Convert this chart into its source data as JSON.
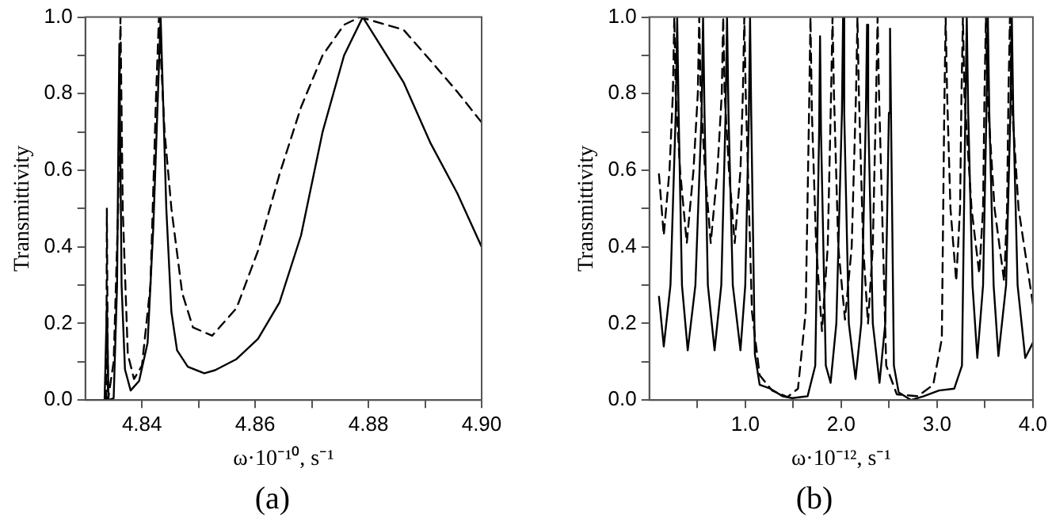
{
  "chart_data": [
    {
      "type": "line",
      "xlabel": "ω·10⁻¹⁰, s⁻¹",
      "ylabel": "Transmittivity",
      "annotations": [
        "(a)"
      ],
      "xlim": [
        4.83,
        4.9
      ],
      "ylim": [
        0,
        1
      ],
      "xticks": [
        {
          "value": 4.84,
          "label": "4.84"
        },
        {
          "value": 4.85,
          "label": null
        },
        {
          "value": 4.86,
          "label": "4.86"
        },
        {
          "value": 4.87,
          "label": null
        },
        {
          "value": 4.88,
          "label": "4.88"
        },
        {
          "value": 4.89,
          "label": null
        },
        {
          "value": 4.9,
          "label": "4.90"
        }
      ],
      "yticks": [
        {
          "value": 0,
          "label": "0.0"
        },
        {
          "value": 0.1,
          "label": null
        },
        {
          "value": 0.2,
          "label": "0.2"
        },
        {
          "value": 0.3,
          "label": null
        },
        {
          "value": 0.4,
          "label": "0.4"
        },
        {
          "value": 0.5,
          "label": null
        },
        {
          "value": 0.6,
          "label": "0.6"
        },
        {
          "value": 0.7,
          "label": null
        },
        {
          "value": 0.8,
          "label": "0.8"
        },
        {
          "value": 0.9,
          "label": null
        },
        {
          "value": 1,
          "label": "1.0"
        }
      ],
      "series": [
        {
          "color": "#000000",
          "line_style": "solid",
          "x": [
            4.83,
            4.8334,
            4.8338,
            4.8341,
            4.835,
            4.8356,
            4.836,
            4.8364,
            4.837,
            4.838,
            4.8395,
            4.841,
            4.842,
            4.8433,
            4.8443,
            4.8452,
            4.8462,
            4.8481,
            4.851,
            4.8529,
            4.8567,
            4.8605,
            4.8643,
            4.8681,
            4.8719,
            4.8757,
            4.879,
            4.8862,
            4.891,
            4.8957,
            4.9
          ],
          "values": [
            0,
            0,
            0.25,
            0,
            0.005,
            0.3,
            0.93,
            0.3,
            0.08,
            0.025,
            0.05,
            0.15,
            0.45,
            1.0,
            0.5,
            0.23,
            0.13,
            0.087,
            0.07,
            0.078,
            0.107,
            0.16,
            0.255,
            0.43,
            0.7,
            0.9,
            1.0,
            0.83,
            0.67,
            0.54,
            0.4
          ]
        },
        {
          "color": "#000000",
          "line_style": "dashed",
          "x": [
            4.8337,
            4.8338,
            4.834,
            4.835,
            4.8358,
            4.8362,
            4.8366,
            4.8375,
            4.8386,
            4.84,
            4.8415,
            4.8425,
            4.843,
            4.844,
            4.8452,
            4.8471,
            4.849,
            4.8524,
            4.8567,
            4.8605,
            4.8643,
            4.8681,
            4.8719,
            4.8757,
            4.8785,
            4.8862,
            4.891,
            4.8957,
            4.9
          ],
          "values": [
            0,
            0.5,
            0,
            0.1,
            0.5,
            1.0,
            0.5,
            0.12,
            0.055,
            0.09,
            0.3,
            0.8,
            1.0,
            0.7,
            0.5,
            0.28,
            0.19,
            0.168,
            0.24,
            0.39,
            0.59,
            0.765,
            0.9,
            0.98,
            1.0,
            0.967,
            0.886,
            0.805,
            0.725
          ]
        }
      ]
    },
    {
      "type": "line",
      "xlabel": "ω·10⁻¹², s⁻¹",
      "ylabel": "Transmittivity",
      "annotations": [
        "(b)"
      ],
      "xlim": [
        0,
        4
      ],
      "ylim": [
        0,
        1
      ],
      "xticks": [
        {
          "value": 0.5,
          "label": null
        },
        {
          "value": 1,
          "label": "1.0"
        },
        {
          "value": 1.5,
          "label": null
        },
        {
          "value": 2,
          "label": "2.0"
        },
        {
          "value": 2.5,
          "label": null
        },
        {
          "value": 3,
          "label": "3.0"
        },
        {
          "value": 3.5,
          "label": null
        },
        {
          "value": 4,
          "label": "4.0"
        }
      ],
      "yticks": [
        {
          "value": 0,
          "label": "0.0"
        },
        {
          "value": 0.1,
          "label": null
        },
        {
          "value": 0.2,
          "label": "0.2"
        },
        {
          "value": 0.3,
          "label": null
        },
        {
          "value": 0.4,
          "label": "0.4"
        },
        {
          "value": 0.5,
          "label": null
        },
        {
          "value": 0.6,
          "label": "0.6"
        },
        {
          "value": 0.7,
          "label": null
        },
        {
          "value": 0.8,
          "label": "0.8"
        },
        {
          "value": 0.9,
          "label": null
        },
        {
          "value": 1,
          "label": "1.0"
        }
      ],
      "series": [
        {
          "color": "#000000",
          "line_style": "solid",
          "x": [
            0.1,
            0.15,
            0.22,
            0.275,
            0.29,
            0.305,
            0.34,
            0.4,
            0.48,
            0.545,
            0.56,
            0.575,
            0.61,
            0.68,
            0.75,
            0.795,
            0.81,
            0.825,
            0.87,
            0.95,
            1.0,
            1.038,
            1.05,
            1.062,
            1.1,
            1.15,
            1.26,
            1.39,
            1.49,
            1.65,
            1.73,
            1.77,
            1.78,
            1.79,
            1.84,
            1.89,
            1.95,
            2.008,
            2.02,
            2.032,
            2.08,
            2.15,
            2.21,
            2.258,
            2.27,
            2.282,
            2.33,
            2.4,
            2.46,
            2.498,
            2.51,
            2.522,
            2.55,
            2.6,
            2.73,
            2.86,
            3.02,
            3.18,
            3.26,
            3.295,
            3.31,
            3.325,
            3.37,
            3.42,
            3.48,
            3.515,
            3.53,
            3.545,
            3.59,
            3.64,
            3.72,
            3.765,
            3.78,
            3.795,
            3.84,
            3.92,
            4.0
          ],
          "values": [
            0.27,
            0.14,
            0.3,
            0.75,
            1.0,
            0.75,
            0.3,
            0.13,
            0.3,
            0.75,
            1.0,
            0.75,
            0.3,
            0.13,
            0.3,
            0.75,
            1.0,
            0.75,
            0.3,
            0.13,
            0.3,
            0.75,
            1.0,
            0.75,
            0.12,
            0.04,
            0.03,
            0.01,
            0.005,
            0.01,
            0.09,
            0.7,
            0.95,
            0.7,
            0.09,
            0.045,
            0.2,
            0.75,
            1.0,
            0.75,
            0.2,
            0.055,
            0.2,
            0.75,
            0.98,
            0.75,
            0.2,
            0.045,
            0.2,
            0.75,
            0.97,
            0.7,
            0.09,
            0.02,
            0,
            0.01,
            0.025,
            0.03,
            0.09,
            0.75,
            1.0,
            0.75,
            0.3,
            0.11,
            0.3,
            0.75,
            1.0,
            0.75,
            0.3,
            0.115,
            0.3,
            0.75,
            1.0,
            0.75,
            0.3,
            0.11,
            0.15
          ]
        },
        {
          "color": "#000000",
          "line_style": "dashed",
          "x": [
            0.1,
            0.15,
            0.21,
            0.245,
            0.26,
            0.275,
            0.32,
            0.39,
            0.46,
            0.505,
            0.52,
            0.535,
            0.58,
            0.64,
            0.71,
            0.755,
            0.77,
            0.785,
            0.83,
            0.89,
            0.95,
            0.975,
            0.99,
            1.005,
            1.07,
            1.15,
            1.28,
            1.44,
            1.55,
            1.63,
            1.665,
            1.68,
            1.695,
            1.74,
            1.8,
            1.86,
            1.895,
            1.91,
            1.925,
            1.97,
            2.04,
            2.11,
            2.155,
            2.17,
            2.185,
            2.23,
            2.28,
            2.33,
            2.365,
            2.38,
            2.395,
            2.47,
            2.58,
            2.8,
            2.96,
            3.05,
            3.075,
            3.09,
            3.105,
            3.14,
            3.2,
            3.24,
            3.255,
            3.27,
            3.285,
            3.36,
            3.44,
            3.48,
            3.495,
            3.51,
            3.525,
            3.6,
            3.7,
            3.73,
            3.745,
            3.76,
            3.775,
            3.85,
            4.0
          ],
          "values": [
            0.59,
            0.43,
            0.6,
            0.8,
            1.0,
            0.8,
            0.6,
            0.41,
            0.6,
            0.8,
            1.0,
            0.8,
            0.6,
            0.41,
            0.6,
            0.8,
            1.0,
            0.8,
            0.6,
            0.41,
            0.6,
            0.8,
            1.0,
            0.8,
            0.23,
            0.065,
            0.025,
            0.008,
            0.03,
            0.23,
            0.75,
            1.0,
            0.75,
            0.4,
            0.18,
            0.4,
            0.8,
            1.0,
            0.8,
            0.4,
            0.21,
            0.4,
            0.8,
            1.0,
            0.8,
            0.4,
            0.2,
            0.4,
            0.8,
            1.0,
            0.8,
            0.09,
            0.015,
            0.01,
            0.04,
            0.16,
            0.75,
            1.0,
            0.8,
            0.5,
            0.31,
            0.5,
            0.8,
            1.0,
            0.8,
            0.5,
            0.33,
            0.5,
            0.8,
            1.0,
            0.8,
            0.5,
            0.31,
            0.5,
            0.8,
            1.0,
            0.8,
            0.5,
            0.25
          ]
        }
      ]
    }
  ]
}
